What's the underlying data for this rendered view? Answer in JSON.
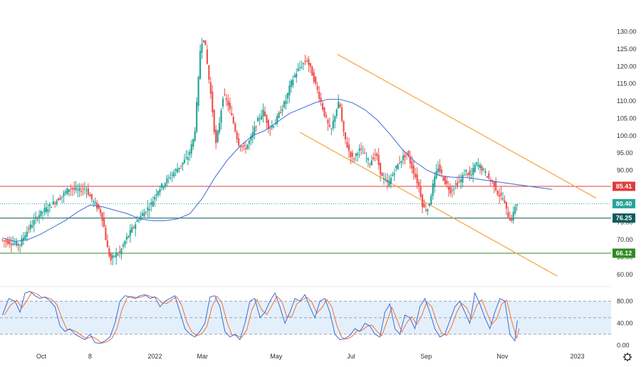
{
  "chart_data": {
    "type": "candlestick",
    "price_panel": {
      "y_ticks": [
        "130.00",
        "125.00",
        "120.00",
        "115.00",
        "110.00",
        "105.00",
        "100.00",
        "95.00",
        "90.00",
        "85.00",
        "80.00",
        "75.00",
        "70.00",
        "65.00",
        "60.00"
      ],
      "ylim": [
        57.5,
        133
      ],
      "x_ticks": [
        "Oct",
        "8",
        "2022",
        "Mar",
        "May",
        "Jul",
        "Sep",
        "Nov",
        "2023"
      ],
      "x_tick_days": [
        31,
        70,
        122,
        160,
        219,
        279,
        339,
        400,
        460
      ],
      "horizontal_levels": [
        {
          "label": "85.41",
          "value": 85.41,
          "color": "#e03b3b",
          "style": "solid"
        },
        {
          "label": "80.40",
          "value": 80.4,
          "color": "#26a69a",
          "style": "dotted"
        },
        {
          "label": "76.25",
          "value": 76.25,
          "color": "#0f5c59",
          "style": "solid"
        },
        {
          "label": "66.12",
          "value": 66.12,
          "color": "#2e8b22",
          "style": "solid"
        }
      ],
      "channel_lines": [
        {
          "color": "#f5a33a",
          "points": [
            [
              268,
              123.5
            ],
            [
              475,
              82
            ]
          ]
        },
        {
          "color": "#f5a33a",
          "points": [
            [
              238,
              101
            ],
            [
              444,
              59.5
            ]
          ]
        }
      ],
      "moving_average": {
        "color": "#3d6bd6",
        "days": [
          0,
          10,
          20,
          30,
          40,
          50,
          60,
          70,
          80,
          90,
          100,
          110,
          120,
          130,
          140,
          150,
          160,
          170,
          180,
          190,
          200,
          210,
          220,
          230,
          240,
          250,
          260,
          270,
          280,
          290,
          300,
          310,
          320,
          330,
          340,
          350,
          360,
          370,
          380,
          390,
          400,
          410,
          420,
          430,
          440
        ],
        "values": [
          70.5,
          69.5,
          70,
          71.5,
          73.5,
          75.5,
          78,
          80,
          79.5,
          78.5,
          77.5,
          76,
          75.5,
          75.5,
          76,
          77.5,
          82,
          88,
          93,
          97,
          100,
          101.5,
          104,
          106.5,
          108,
          109.5,
          110.5,
          110.5,
          109.5,
          107.5,
          104.5,
          100.5,
          96,
          92.5,
          90,
          88.5,
          88,
          88,
          87.5,
          87,
          86.5,
          86,
          85.5,
          85,
          84.5
        ]
      },
      "price_path": {
        "days": [
          0,
          10,
          15,
          20,
          30,
          40,
          50,
          55,
          62,
          68,
          72,
          76,
          80,
          82,
          85,
          88,
          92,
          95,
          100,
          105,
          110,
          115,
          120,
          125,
          130,
          135,
          140,
          145,
          150,
          155,
          158,
          160,
          163,
          166,
          168,
          170,
          172,
          175,
          178,
          182,
          186,
          190,
          195,
          200,
          205,
          210,
          215,
          220,
          225,
          228,
          232,
          236,
          240,
          245,
          250,
          256,
          260,
          264,
          268,
          271,
          274,
          278,
          282,
          286,
          290,
          295,
          300,
          305,
          310,
          315,
          320,
          325,
          330,
          335,
          338,
          342,
          346,
          350,
          355,
          360,
          364,
          368,
          372,
          376,
          380,
          384,
          388,
          392,
          395,
          398,
          402,
          404,
          406,
          408,
          410,
          412
        ],
        "values": [
          70,
          69,
          68.5,
          72,
          77,
          80,
          83,
          85,
          84,
          85,
          82,
          80,
          78,
          75,
          68,
          64,
          66,
          66,
          70,
          73,
          76,
          78,
          80,
          84,
          86,
          88,
          90,
          92,
          94,
          100,
          115,
          127,
          128,
          118,
          112,
          105,
          97,
          104,
          112,
          109,
          104,
          98,
          96,
          99,
          104,
          107,
          102,
          104,
          108,
          110,
          115,
          118,
          120,
          122,
          117,
          110,
          105,
          101,
          107,
          110,
          101,
          96,
          93,
          96,
          95,
          92,
          95,
          88,
          86,
          90,
          93,
          95,
          90,
          85,
          79,
          79,
          86,
          91,
          87,
          84,
          86,
          87,
          90,
          88,
          92,
          91,
          89,
          87,
          86,
          83,
          82,
          79,
          77,
          75.5,
          77,
          80.5
        ]
      },
      "current_price": "80.40"
    },
    "oscillator_panel": {
      "y_ticks": [
        "80.00",
        "40.00",
        "0.00"
      ],
      "ylim": [
        -6,
        104
      ],
      "band": [
        20,
        80
      ],
      "midline": 50,
      "k_color": "#3d6bd6",
      "d_color": "#f0703a",
      "band_fill": "#e3f0fb",
      "days": [
        0,
        5,
        10,
        14,
        18,
        22,
        26,
        30,
        34,
        38,
        42,
        46,
        50,
        54,
        58,
        62,
        66,
        70,
        74,
        78,
        82,
        86,
        90,
        94,
        98,
        102,
        106,
        110,
        114,
        118,
        122,
        126,
        130,
        134,
        138,
        142,
        146,
        150,
        154,
        158,
        162,
        166,
        170,
        174,
        178,
        182,
        186,
        190,
        194,
        198,
        202,
        206,
        210,
        214,
        218,
        222,
        226,
        230,
        234,
        238,
        242,
        246,
        250,
        254,
        258,
        262,
        266,
        270,
        274,
        278,
        282,
        286,
        290,
        294,
        298,
        302,
        306,
        310,
        314,
        318,
        322,
        326,
        330,
        334,
        338,
        342,
        346,
        350,
        354,
        358,
        362,
        366,
        370,
        374,
        378,
        382,
        386,
        390,
        394,
        398,
        402,
        406,
        410,
        412
      ],
      "values": [
        55,
        85,
        80,
        60,
        95,
        98,
        90,
        85,
        88,
        80,
        70,
        35,
        25,
        30,
        20,
        15,
        10,
        20,
        5,
        3,
        8,
        15,
        40,
        80,
        90,
        88,
        85,
        90,
        92,
        85,
        88,
        70,
        80,
        85,
        90,
        60,
        30,
        20,
        15,
        25,
        40,
        88,
        90,
        70,
        25,
        15,
        20,
        10,
        40,
        80,
        85,
        50,
        60,
        80,
        95,
        70,
        40,
        60,
        85,
        80,
        92,
        70,
        50,
        80,
        85,
        60,
        20,
        10,
        12,
        18,
        30,
        25,
        40,
        35,
        20,
        15,
        60,
        75,
        30,
        20,
        55,
        50,
        30,
        70,
        85,
        60,
        30,
        15,
        20,
        45,
        70,
        80,
        60,
        40,
        95,
        75,
        50,
        30,
        60,
        85,
        80,
        20,
        8,
        45
      ]
    },
    "x_days_visible": [
      -2,
      487
    ]
  }
}
